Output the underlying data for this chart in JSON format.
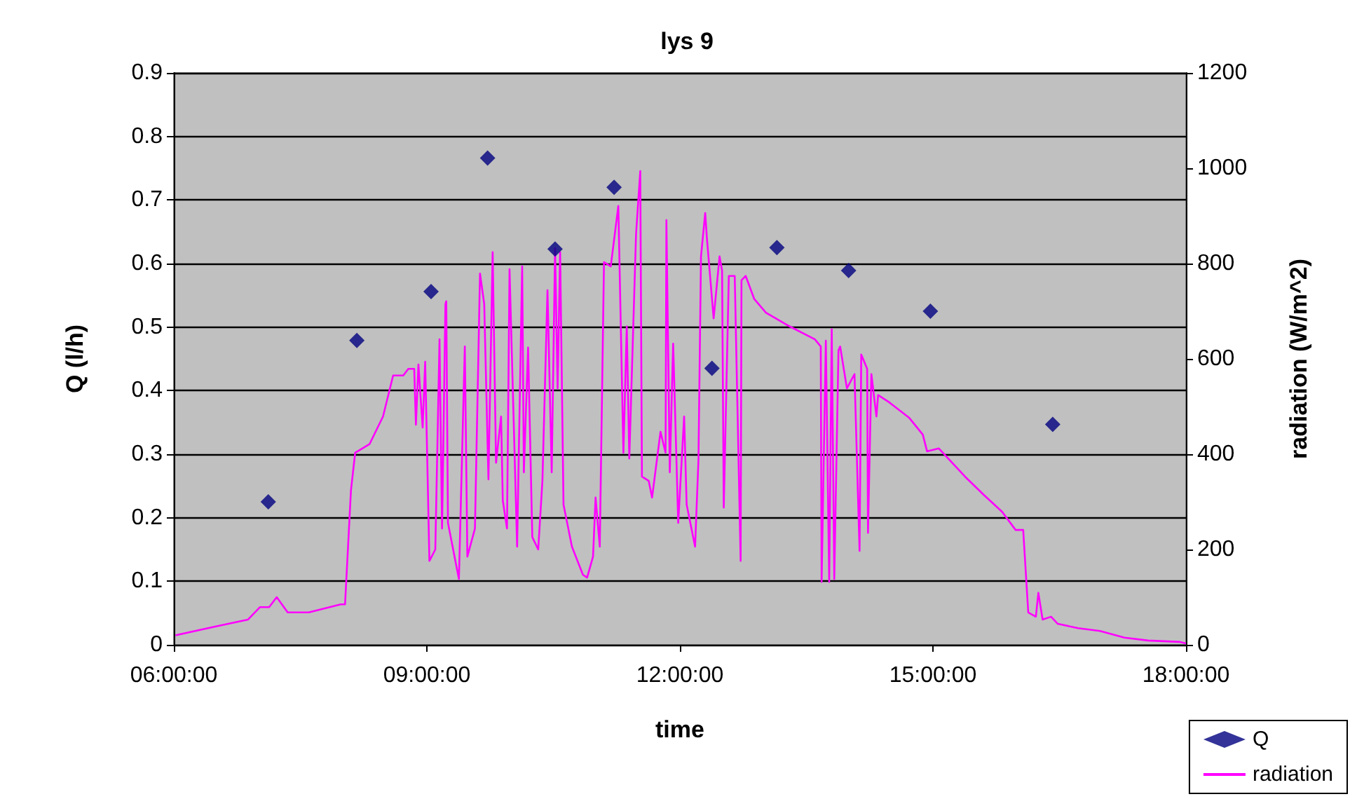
{
  "chart_data": {
    "type": "scatter",
    "title": "lys 9",
    "xlabel": "time",
    "ylabel": "Q (l/h)",
    "y2label": "radiation (W/m^2)",
    "xlim": [
      6,
      18
    ],
    "xticks": [
      {
        "value": 6,
        "label": "06:00:00"
      },
      {
        "value": 9,
        "label": "09:00:00"
      },
      {
        "value": 12,
        "label": "12:00:00"
      },
      {
        "value": 15,
        "label": "15:00:00"
      },
      {
        "value": 18,
        "label": "18:00:00"
      }
    ],
    "ylim": [
      0,
      0.9
    ],
    "yticks": [
      0,
      0.1,
      0.2,
      0.3,
      0.4,
      0.5,
      0.6,
      0.7,
      0.8,
      0.9
    ],
    "y2lim": [
      0,
      1200
    ],
    "y2ticks": [
      0,
      200,
      400,
      600,
      800,
      1000,
      1200
    ],
    "grid": "y",
    "legend": "bottom right",
    "line_style": "solid",
    "series": [
      {
        "name": "Q",
        "marker": "diamond",
        "color": "#000080",
        "x": [
          7.12,
          8.17,
          9.05,
          9.72,
          10.52,
          11.22,
          12.38,
          13.15,
          14.0,
          14.97,
          16.42
        ],
        "values": [
          0.225,
          0.479,
          0.556,
          0.766,
          0.623,
          0.72,
          0.435,
          0.625,
          0.589,
          0.525,
          0.347
        ]
      },
      {
        "name": "radiation",
        "type": "line",
        "marker": "none",
        "axis": "y2",
        "color": "#ff00ff",
        "x": [
          6.02,
          6.48,
          6.88,
          7.02,
          7.13,
          7.22,
          7.35,
          7.6,
          7.98,
          8.03,
          8.1,
          8.15,
          8.32,
          8.48,
          8.6,
          8.72,
          8.78,
          8.85,
          8.87,
          8.9,
          8.95,
          8.98,
          9.03,
          9.1,
          9.15,
          9.18,
          9.22,
          9.23,
          9.25,
          9.38,
          9.45,
          9.48,
          9.57,
          9.63,
          9.68,
          9.73,
          9.78,
          9.82,
          9.88,
          9.9,
          9.95,
          9.98,
          10.07,
          10.13,
          10.15,
          10.2,
          10.25,
          10.32,
          10.37,
          10.43,
          10.48,
          10.52,
          10.55,
          10.58,
          10.62,
          10.72,
          10.85,
          10.9,
          10.97,
          11.0,
          11.05,
          11.1,
          11.18,
          11.27,
          11.33,
          11.37,
          11.4,
          11.48,
          11.53,
          11.55,
          11.63,
          11.67,
          11.77,
          11.83,
          11.84,
          11.88,
          11.92,
          11.98,
          12.05,
          12.08,
          12.18,
          12.22,
          12.25,
          12.3,
          12.32,
          12.4,
          12.47,
          12.5,
          12.52,
          12.58,
          12.65,
          12.72,
          12.73,
          12.78,
          12.88,
          13.02,
          13.27,
          13.6,
          13.67,
          13.68,
          13.73,
          13.77,
          13.8,
          13.83,
          13.88,
          13.9,
          13.98,
          14.07,
          14.13,
          14.15,
          14.22,
          14.23,
          14.27,
          14.33,
          14.35,
          14.48,
          14.72,
          14.88,
          14.93,
          15.07,
          15.38,
          15.6,
          15.82,
          15.98,
          16.07,
          16.13,
          16.22,
          16.25,
          16.3,
          16.4,
          16.48,
          16.72,
          16.98,
          17.27,
          17.55,
          17.93,
          18.0
        ],
        "values": [
          20,
          38,
          53,
          79,
          79,
          100,
          68,
          68,
          85,
          85,
          324,
          403,
          421,
          479,
          565,
          565,
          579,
          579,
          462,
          588,
          456,
          594,
          176,
          200,
          641,
          244,
          715,
          721,
          256,
          138,
          626,
          185,
          244,
          779,
          715,
          347,
          824,
          382,
          479,
          303,
          244,
          788,
          206,
          794,
          362,
          624,
          226,
          200,
          344,
          744,
          362,
          832,
          538,
          824,
          294,
          206,
          147,
          141,
          185,
          309,
          206,
          803,
          794,
          921,
          403,
          668,
          391,
          862,
          994,
          353,
          344,
          309,
          447,
          403,
          891,
          362,
          632,
          256,
          479,
          294,
          206,
          388,
          815,
          906,
          853,
          685,
          815,
          785,
          288,
          774,
          774,
          176,
          765,
          774,
          726,
          697,
          671,
          641,
          626,
          132,
          638,
          132,
          662,
          138,
          618,
          626,
          538,
          568,
          197,
          609,
          579,
          235,
          568,
          479,
          524,
          509,
          476,
          441,
          406,
          412,
          353,
          315,
          279,
          241,
          241,
          68,
          59,
          109,
          53,
          59,
          44,
          35,
          29,
          15,
          9,
          6,
          3
        ]
      }
    ]
  }
}
